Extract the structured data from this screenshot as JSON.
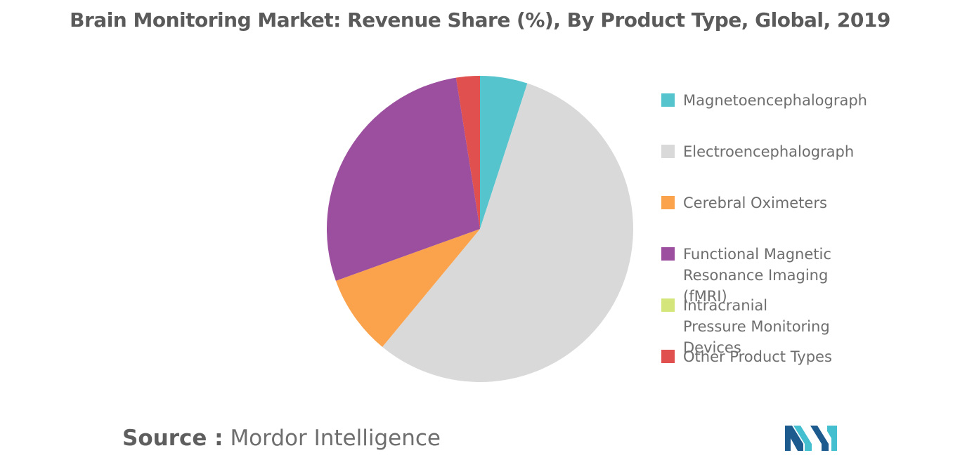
{
  "chart_data": {
    "type": "pie",
    "title": "Brain Monitoring Market: Revenue Share (%), By Product Type, Global, 2019",
    "slices": [
      {
        "label": "Magnetoencephalograph",
        "value": 5,
        "color": "#56c4cd"
      },
      {
        "label": "Electroencephalograph",
        "value": 56,
        "color": "#d9d9d9"
      },
      {
        "label": "Cerebral Oximeters",
        "value": 8.5,
        "color": "#fba24d"
      },
      {
        "label": "Functional Magnetic Resonance Imaging (fMRI)",
        "value": 28,
        "color": "#9b4f9e"
      },
      {
        "label": "Intracranial Pressure Monitoring Devices",
        "value": 0,
        "color": "#d4e57c"
      },
      {
        "label": "Other Product Types",
        "value": 2.5,
        "color": "#e0504f"
      }
    ],
    "start_angle_deg": 0,
    "direction": "clockwise",
    "legend_position": "right"
  },
  "source": {
    "label": "Source :",
    "text": "Mordor Intelligence"
  },
  "logo": {
    "icon": "mordor-intelligence-logo-icon",
    "colors": [
      "#1d5b8e",
      "#44bfd0"
    ]
  }
}
